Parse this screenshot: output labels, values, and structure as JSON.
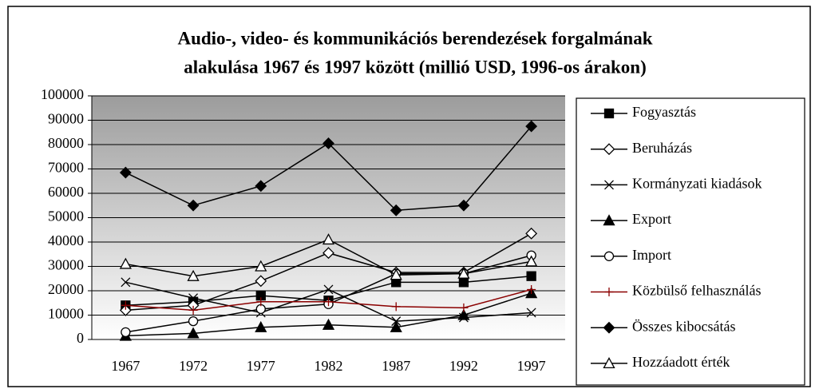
{
  "chart_data": {
    "type": "line",
    "title": [
      "Audio-, video- és kommunikációs berendezések forgalmának",
      "alakulása 1967 és 1997 között (millió USD, 1996-os árakon)"
    ],
    "categories": [
      "1967",
      "1972",
      "1977",
      "1982",
      "1987",
      "1992",
      "1997"
    ],
    "ylim": [
      0,
      100000
    ],
    "yticks": [
      0,
      10000,
      20000,
      30000,
      40000,
      50000,
      60000,
      70000,
      80000,
      90000,
      100000
    ],
    "grid": true,
    "legend": "right",
    "series": [
      {
        "name": "Fogyasztás",
        "color": "#000000",
        "marker": "square",
        "filled": true,
        "values": [
          14000,
          15500,
          18000,
          16000,
          23500,
          23500,
          26000
        ]
      },
      {
        "name": "Beruházás",
        "color": "#000000",
        "marker": "diamond",
        "filled": false,
        "values": [
          12000,
          14000,
          24000,
          35500,
          27500,
          27500,
          43500
        ]
      },
      {
        "name": "Kormányzati kiadások",
        "color": "#000000",
        "marker": "x",
        "filled": false,
        "values": [
          23500,
          17000,
          11000,
          20500,
          7500,
          9000,
          11000
        ]
      },
      {
        "name": "Export",
        "color": "#000000",
        "marker": "triangle",
        "filled": true,
        "values": [
          1500,
          2500,
          5000,
          6000,
          5000,
          10000,
          19000
        ]
      },
      {
        "name": "Import",
        "color": "#000000",
        "marker": "circle",
        "filled": false,
        "values": [
          3000,
          7500,
          12500,
          14500,
          27000,
          27000,
          34500
        ]
      },
      {
        "name": "Közbülső felhasználás",
        "color": "#8b0000",
        "marker": "plus",
        "filled": false,
        "values": [
          14000,
          12000,
          15500,
          15500,
          13500,
          13000,
          20500
        ]
      },
      {
        "name": "Összes kibocsátás",
        "color": "#000000",
        "marker": "diamond",
        "filled": true,
        "values": [
          68500,
          55000,
          63000,
          80500,
          53000,
          55000,
          87500
        ]
      },
      {
        "name": "Hozzáadott érték",
        "color": "#000000",
        "marker": "triangle",
        "filled": false,
        "values": [
          31000,
          26000,
          30000,
          41000,
          26500,
          27000,
          32000
        ]
      }
    ]
  }
}
